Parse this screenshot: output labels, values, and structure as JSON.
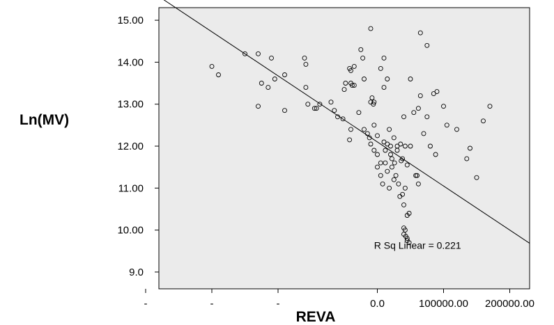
{
  "chart_data": {
    "type": "scatter",
    "title": "",
    "xlabel": "REVA",
    "ylabel": "Ln(MV)",
    "x_ticks": [
      {
        "label": "-",
        "value": -350000
      },
      {
        "label": "-",
        "value": -250000
      },
      {
        "label": "-",
        "value": -150000
      },
      {
        "label": "0.0",
        "value": 0
      },
      {
        "label": "100000.00",
        "value": 100000
      },
      {
        "label": "200000.00",
        "value": 200000
      }
    ],
    "y_ticks": [
      {
        "label": "15.00",
        "value": 15
      },
      {
        "label": "14.00",
        "value": 14
      },
      {
        "label": "13.00",
        "value": 13
      },
      {
        "label": "12.00",
        "value": 12
      },
      {
        "label": "11.00",
        "value": 11
      },
      {
        "label": "10.00",
        "value": 10
      },
      {
        "label": "9.0",
        "value": 9
      }
    ],
    "xlim": [
      -330000,
      230000
    ],
    "ylim": [
      8.6,
      15.3
    ],
    "grid": false,
    "background": "#ebebeb",
    "fit_line": {
      "slope": -1.05e-05,
      "intercept": 12.1
    },
    "annotation": "R Sq Linear = 0.221",
    "points": [
      [
        -250000,
        13.9
      ],
      [
        -240000,
        13.7
      ],
      [
        -200000,
        14.2
      ],
      [
        -180000,
        14.2
      ],
      [
        -175000,
        13.5
      ],
      [
        -165000,
        13.4
      ],
      [
        -160000,
        14.1
      ],
      [
        -155000,
        13.6
      ],
      [
        -180000,
        12.95
      ],
      [
        -140000,
        13.7
      ],
      [
        -140000,
        12.85
      ],
      [
        -110000,
        14.1
      ],
      [
        -108000,
        13.95
      ],
      [
        -108000,
        13.4
      ],
      [
        -105000,
        13.0
      ],
      [
        -95000,
        12.9
      ],
      [
        -92000,
        12.9
      ],
      [
        -87000,
        13.0
      ],
      [
        -70000,
        13.05
      ],
      [
        -65000,
        12.85
      ],
      [
        -60000,
        12.7
      ],
      [
        -52000,
        12.65
      ],
      [
        -50000,
        13.35
      ],
      [
        -48000,
        13.5
      ],
      [
        -42000,
        13.85
      ],
      [
        -40000,
        13.8
      ],
      [
        -40000,
        13.5
      ],
      [
        -38000,
        13.45
      ],
      [
        -35000,
        13.9
      ],
      [
        -35000,
        13.45
      ],
      [
        -28000,
        12.8
      ],
      [
        -25000,
        14.3
      ],
      [
        -22000,
        14.1
      ],
      [
        -20000,
        13.6
      ],
      [
        -20000,
        12.4
      ],
      [
        -15000,
        12.3
      ],
      [
        -40000,
        12.4
      ],
      [
        -42000,
        12.15
      ],
      [
        -12000,
        12.2
      ],
      [
        -10000,
        13.05
      ],
      [
        -8000,
        13.15
      ],
      [
        -6000,
        13.0
      ],
      [
        -5000,
        12.5
      ],
      [
        -10000,
        14.8
      ],
      [
        -5000,
        13.05
      ],
      [
        0,
        12.25
      ],
      [
        5000,
        13.85
      ],
      [
        10000,
        13.4
      ],
      [
        10000,
        14.1
      ],
      [
        15000,
        13.6
      ],
      [
        -10000,
        12.05
      ],
      [
        -5000,
        11.9
      ],
      [
        0,
        11.8
      ],
      [
        0,
        11.5
      ],
      [
        5000,
        11.6
      ],
      [
        5000,
        11.3
      ],
      [
        8000,
        11.1
      ],
      [
        10000,
        12.1
      ],
      [
        12000,
        11.9
      ],
      [
        12000,
        11.6
      ],
      [
        15000,
        12.05
      ],
      [
        15000,
        11.4
      ],
      [
        18000,
        11.0
      ],
      [
        18000,
        12.4
      ],
      [
        20000,
        12.0
      ],
      [
        20000,
        11.8
      ],
      [
        22000,
        11.5
      ],
      [
        22000,
        11.7
      ],
      [
        25000,
        11.2
      ],
      [
        25000,
        12.2
      ],
      [
        26000,
        11.6
      ],
      [
        28000,
        11.3
      ],
      [
        30000,
        11.9
      ],
      [
        30000,
        12.0
      ],
      [
        32000,
        11.1
      ],
      [
        34000,
        10.8
      ],
      [
        35000,
        12.05
      ],
      [
        36000,
        11.65
      ],
      [
        38000,
        10.85
      ],
      [
        38000,
        11.7
      ],
      [
        40000,
        12.7
      ],
      [
        40000,
        10.6
      ],
      [
        42000,
        11.0
      ],
      [
        42000,
        12.0
      ],
      [
        45000,
        10.35
      ],
      [
        45000,
        11.55
      ],
      [
        48000,
        10.4
      ],
      [
        50000,
        13.6
      ],
      [
        50000,
        12.0
      ],
      [
        55000,
        12.8
      ],
      [
        58000,
        11.3
      ],
      [
        60000,
        11.3
      ],
      [
        62000,
        11.1
      ],
      [
        62000,
        12.9
      ],
      [
        65000,
        13.2
      ],
      [
        65000,
        14.7
      ],
      [
        70000,
        12.3
      ],
      [
        75000,
        14.4
      ],
      [
        75000,
        12.7
      ],
      [
        80000,
        12.0
      ],
      [
        85000,
        13.25
      ],
      [
        88000,
        11.8
      ],
      [
        90000,
        13.3
      ],
      [
        100000,
        12.95
      ],
      [
        105000,
        12.5
      ],
      [
        120000,
        12.4
      ],
      [
        135000,
        11.7
      ],
      [
        140000,
        11.95
      ],
      [
        150000,
        11.25
      ],
      [
        160000,
        12.6
      ],
      [
        170000,
        12.95
      ],
      [
        40000,
        9.9
      ],
      [
        42000,
        10.0
      ],
      [
        45000,
        9.8
      ],
      [
        45000,
        9.75
      ],
      [
        48000,
        9.7
      ],
      [
        43000,
        9.85
      ],
      [
        40000,
        10.05
      ]
    ]
  }
}
